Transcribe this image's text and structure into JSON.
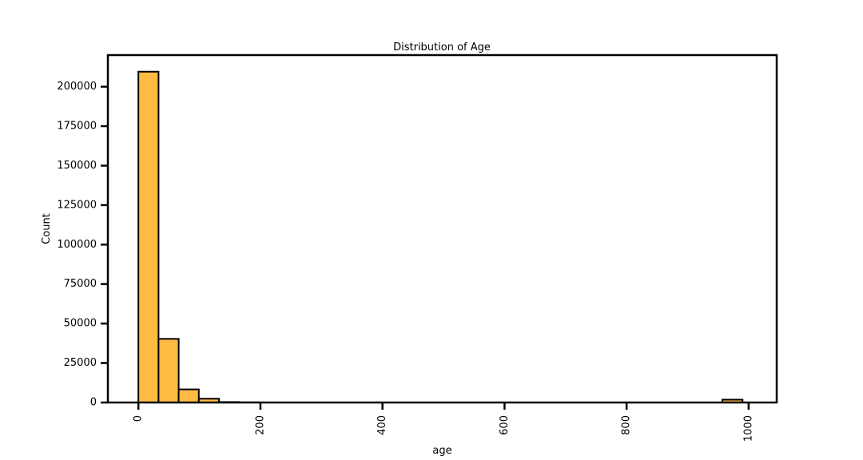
{
  "chart_data": {
    "type": "bar",
    "title": "Distribution of Age",
    "xlabel": "age",
    "ylabel": "Count",
    "xlim": [
      -50,
      1046
    ],
    "ylim": [
      0,
      220000
    ],
    "x_ticks": [
      "0",
      "200",
      "400",
      "600",
      "800",
      "1000"
    ],
    "y_ticks": [
      "0",
      "25000",
      "50000",
      "75000",
      "100000",
      "125000",
      "150000",
      "175000",
      "200000"
    ],
    "bin_width": 33,
    "bins": [
      {
        "start": 0,
        "end": 33,
        "count": 209500
      },
      {
        "start": 33,
        "end": 66,
        "count": 40300
      },
      {
        "start": 66,
        "end": 99,
        "count": 8300
      },
      {
        "start": 99,
        "end": 132,
        "count": 2400
      },
      {
        "start": 132,
        "end": 165,
        "count": 300
      },
      {
        "start": 165,
        "end": 198,
        "count": 100
      },
      {
        "start": 957,
        "end": 990,
        "count": 1800
      }
    ],
    "bar_color": "#ffbb44",
    "edge_color": "#000000",
    "grid": false
  }
}
